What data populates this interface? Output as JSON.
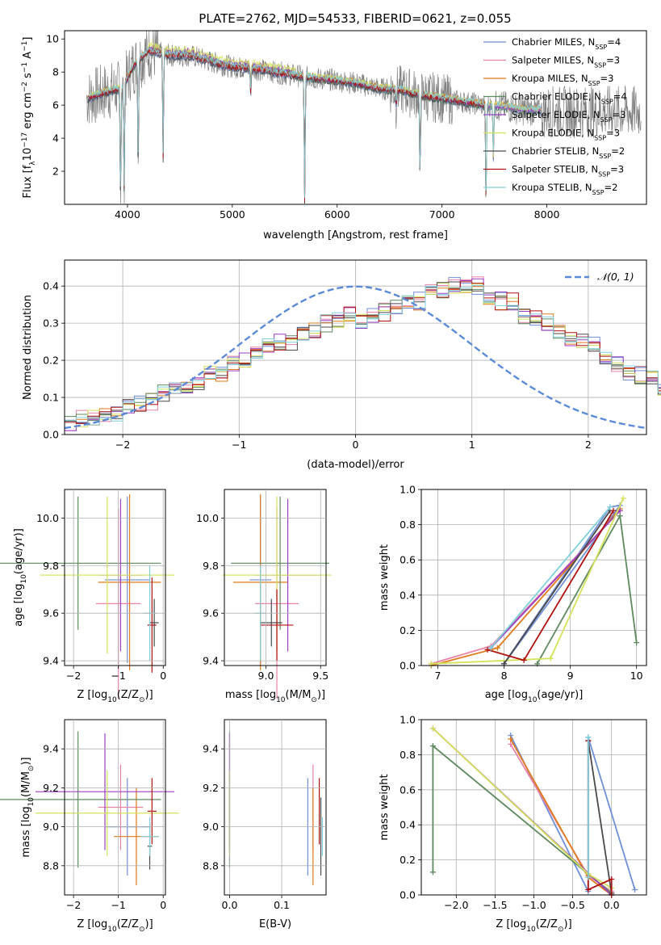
{
  "title": "PLATE=2762, MJD=54533, FIBERID=0621, z=0.055",
  "colors": {
    "Chabrier MILES": "#6f8fd8",
    "Salpeter MILES": "#e783a6",
    "Kroupa MILES": "#e07a1a",
    "Chabrier ELODIE": "#5e8a5e",
    "Salpeter ELODIE": "#9b3fc2",
    "Kroupa ELODIE": "#d4e25a",
    "Chabrier STELIB": "#4a4a4a",
    "Salpeter STELIB": "#b01010",
    "Kroupa STELIB": "#80d0dc",
    "data": "#808080",
    "normal": "#5b8bd8"
  },
  "chart_data": [
    {
      "type": "line",
      "xlabel": "wavelength [Angstrom, rest frame]",
      "ylabel_main": "Flux [f",
      "ylabel_sub": "λ",
      "ylabel_tail": "10",
      "ylabel_exp1": "−17",
      "ylabel_mid": " erg cm",
      "ylabel_exp2": "−2",
      "ylabel_mid2": " s",
      "ylabel_exp3": "−1",
      "ylabel_end": " A",
      "ylabel_exp4": "−1",
      "ylabel_close": "]",
      "xlim": [
        3400,
        8950
      ],
      "ylim": [
        0,
        10.5
      ],
      "xticks": [
        "4000",
        "5000",
        "6000",
        "7000",
        "8000"
      ],
      "yticks": [
        "2",
        "4",
        "6",
        "8",
        "10"
      ],
      "legend_position": "top-right",
      "legend": [
        {
          "name": "Chabrier MILES",
          "nssp": "4"
        },
        {
          "name": "Salpeter MILES",
          "nssp": "3"
        },
        {
          "name": "Kroupa MILES",
          "nssp": "3"
        },
        {
          "name": "Chabrier ELODIE",
          "nssp": "4"
        },
        {
          "name": "Salpeter ELODIE",
          "nssp": "3"
        },
        {
          "name": "Kroupa ELODIE",
          "nssp": "3"
        },
        {
          "name": "Chabrier STELIB",
          "nssp": "2"
        },
        {
          "name": "Salpeter STELIB",
          "nssp": "3"
        },
        {
          "name": "Kroupa STELIB",
          "nssp": "2"
        }
      ],
      "legend_nssp_label": "N",
      "legend_nssp_sub": "SSP",
      "continuum": [
        [
          3620,
          6.4
        ],
        [
          3800,
          6.8
        ],
        [
          3950,
          7.0
        ],
        [
          4050,
          8.3
        ],
        [
          4200,
          9.3
        ],
        [
          4400,
          9.0
        ],
        [
          4600,
          9.0
        ],
        [
          4800,
          8.6
        ],
        [
          5000,
          8.3
        ],
        [
          5200,
          8.2
        ],
        [
          5400,
          8.0
        ],
        [
          5600,
          7.8
        ],
        [
          5800,
          7.6
        ],
        [
          6000,
          7.5
        ],
        [
          6200,
          7.3
        ],
        [
          6400,
          7.0
        ],
        [
          6600,
          6.9
        ],
        [
          6800,
          6.6
        ],
        [
          7000,
          6.4
        ],
        [
          7200,
          6.2
        ],
        [
          7400,
          6.0
        ],
        [
          7600,
          5.9
        ],
        [
          7800,
          5.7
        ],
        [
          7900,
          5.7
        ]
      ],
      "absorption": [
        [
          3934,
          0.3
        ],
        [
          3968,
          1.0
        ],
        [
          4102,
          2.5
        ],
        [
          4340,
          2.8
        ],
        [
          5175,
          6.8
        ],
        [
          5690,
          0.1
        ],
        [
          6563,
          6.0
        ],
        [
          6790,
          1.7
        ],
        [
          7420,
          0.1
        ],
        [
          7490,
          2.8
        ]
      ],
      "data_xrange": [
        3610,
        8900
      ]
    },
    {
      "type": "line",
      "xlabel": "(data-model)/error",
      "ylabel": "Normed distribution",
      "xlim": [
        -2.5,
        2.5
      ],
      "ylim": [
        0,
        0.47
      ],
      "xticks": [
        "−2",
        "−1",
        "0",
        "1",
        "2"
      ],
      "yticks": [
        "0.0",
        "0.1",
        "0.2",
        "0.3",
        "0.4"
      ],
      "legend_position": "top-right",
      "legend_label": "𝒩(0, 1)",
      "bin_width": 0.1,
      "hist_base": [
        0.03,
        0.04,
        0.05,
        0.05,
        0.06,
        0.07,
        0.08,
        0.09,
        0.11,
        0.12,
        0.13,
        0.14,
        0.16,
        0.16,
        0.19,
        0.2,
        0.22,
        0.24,
        0.25,
        0.25,
        0.27,
        0.28,
        0.3,
        0.31,
        0.32,
        0.31,
        0.32,
        0.33,
        0.34,
        0.35,
        0.36,
        0.38,
        0.39,
        0.4,
        0.4,
        0.4,
        0.37,
        0.36,
        0.36,
        0.32,
        0.31,
        0.3,
        0.27,
        0.25,
        0.25,
        0.24,
        0.21,
        0.19,
        0.17,
        0.16,
        0.15,
        0.13,
        0.12,
        0.12,
        0.1,
        0.08,
        0.09,
        0.08,
        0.08,
        0.07,
        0.06,
        0.06,
        0.05,
        0.04,
        0.04,
        0.04,
        0.03,
        0.03,
        0.03,
        0.02
      ]
    },
    {
      "type": "scatter",
      "xlabel": "Z [log",
      "xlabel_sub": "10",
      "xlabel_tail": "(Z/Z",
      "xlabel_sun": "⊙",
      "xlabel_close": ")]",
      "ylabel": "age  [log",
      "ylabel_sub": "10",
      "ylabel_tail": "(age/yr)]",
      "xlim": [
        -2.2,
        0.05
      ],
      "ylim": [
        9.38,
        10.12
      ],
      "xticks": [
        "−2",
        "−1",
        "0"
      ],
      "yticks": [
        "9.4",
        "9.6",
        "9.8",
        "10.0"
      ],
      "points": [
        {
          "series": "Chabrier MILES",
          "x": -0.8,
          "xerr": 0.5,
          "y": 9.74,
          "yerr": 0.35
        },
        {
          "series": "Salpeter MILES",
          "x": -1.0,
          "xerr": 0.5,
          "y": 9.64,
          "yerr": 0.4
        },
        {
          "series": "Kroupa MILES",
          "x": -0.75,
          "xerr": 0.7,
          "y": 9.73,
          "yerr": 0.37
        },
        {
          "series": "Chabrier ELODIE",
          "x": -1.9,
          "xerr": 1.85,
          "y": 9.81,
          "yerr": 0.28
        },
        {
          "series": "Salpeter ELODIE",
          "x": -0.95,
          "xerr": 0.5,
          "y": 9.76,
          "yerr": 0.32
        },
        {
          "series": "Kroupa ELODIE",
          "x": -1.25,
          "xerr": 1.5,
          "y": 9.76,
          "yerr": 0.33
        },
        {
          "series": "Chabrier STELIB",
          "x": -0.2,
          "xerr": 0.1,
          "y": 9.56,
          "yerr": 0.1
        },
        {
          "series": "Salpeter STELIB",
          "x": -0.25,
          "xerr": 0.1,
          "y": 9.55,
          "yerr": 0.2
        },
        {
          "series": "Kroupa STELIB",
          "x": -0.3,
          "xerr": 0.15,
          "y": 9.6,
          "yerr": 0.2
        }
      ]
    },
    {
      "type": "scatter",
      "xlabel": "mass [log",
      "xlabel_sub": "10",
      "xlabel_tail": "(M/M",
      "xlabel_sun": "⊙",
      "xlabel_close": ")]",
      "xlim": [
        8.62,
        9.55
      ],
      "ylim": [
        9.38,
        10.12
      ],
      "xticks": [
        "9.0",
        "9.5"
      ],
      "yticks": [
        "9.4",
        "9.6",
        "9.8",
        "10.0"
      ],
      "points": [
        {
          "series": "Chabrier MILES",
          "x": 8.95,
          "xerr": 0.1,
          "y": 9.74,
          "yerr": 0.35
        },
        {
          "series": "Salpeter MILES",
          "x": 9.1,
          "xerr": 0.2,
          "y": 9.64,
          "yerr": 0.4
        },
        {
          "series": "Kroupa MILES",
          "x": 8.95,
          "xerr": 0.25,
          "y": 9.73,
          "yerr": 0.37
        },
        {
          "series": "Chabrier ELODIE",
          "x": 9.13,
          "xerr": 0.45,
          "y": 9.81,
          "yerr": 0.28
        },
        {
          "series": "Salpeter ELODIE",
          "x": 9.2,
          "xerr": 0.3,
          "y": 9.76,
          "yerr": 0.32
        },
        {
          "series": "Kroupa ELODIE",
          "x": 9.1,
          "xerr": 0.5,
          "y": 9.76,
          "yerr": 0.33
        },
        {
          "series": "Chabrier STELIB",
          "x": 9.05,
          "xerr": 0.1,
          "y": 9.56,
          "yerr": 0.1
        },
        {
          "series": "Salpeter STELIB",
          "x": 9.1,
          "xerr": 0.15,
          "y": 9.55,
          "yerr": 0.15
        },
        {
          "series": "Kroupa STELIB",
          "x": 8.95,
          "xerr": 0.05,
          "y": 9.6,
          "yerr": 0.2
        }
      ]
    },
    {
      "type": "line",
      "xlabel": "age  [log",
      "xlabel_sub": "10",
      "xlabel_tail": "(age/yr)]",
      "ylabel": "mass weight",
      "xlim": [
        6.75,
        10.15
      ],
      "ylim": [
        0,
        1.0
      ],
      "xticks": [
        "7",
        "8",
        "9",
        "10"
      ],
      "yticks": [
        "0.0",
        "0.2",
        "0.4",
        "0.6",
        "0.8",
        "1.0"
      ],
      "series": [
        {
          "name": "Chabrier MILES",
          "x": [
            8.0,
            9.6,
            9.75,
            8.0
          ],
          "y": [
            0.01,
            0.9,
            0.91,
            0.01
          ]
        },
        {
          "name": "Salpeter MILES",
          "x": [
            6.9,
            7.8,
            9.75
          ],
          "y": [
            0.01,
            0.11,
            0.88
          ]
        },
        {
          "name": "Kroupa MILES",
          "x": [
            6.9,
            7.9,
            9.75
          ],
          "y": [
            0.0,
            0.1,
            0.89
          ]
        },
        {
          "name": "Chabrier ELODIE",
          "x": [
            8.5,
            9.75,
            10.0
          ],
          "y": [
            0.01,
            0.85,
            0.13
          ]
        },
        {
          "name": "Salpeter ELODIE",
          "x": [
            7.8,
            9.75
          ],
          "y": [
            0.1,
            0.88
          ]
        },
        {
          "name": "Kroupa ELODIE",
          "x": [
            6.9,
            8.7,
            9.8
          ],
          "y": [
            0.01,
            0.04,
            0.95
          ]
        },
        {
          "name": "Chabrier STELIB",
          "x": [
            8.0,
            9.6
          ],
          "y": [
            0.01,
            0.88
          ]
        },
        {
          "name": "Salpeter STELIB",
          "x": [
            7.75,
            8.3,
            9.65
          ],
          "y": [
            0.09,
            0.03,
            0.88
          ]
        },
        {
          "name": "Kroupa STELIB",
          "x": [
            7.8,
            9.6
          ],
          "y": [
            0.1,
            0.9
          ]
        }
      ]
    },
    {
      "type": "scatter",
      "xlabel": "Z [log",
      "xlabel_sub": "10",
      "xlabel_tail": "(Z/Z",
      "xlabel_sun": "⊙",
      "xlabel_close": ")]",
      "ylabel": "mass [log",
      "ylabel_sub": "10",
      "ylabel_tail": "(M/M",
      "ylabel_sun": "⊙",
      "ylabel_close": ")]",
      "xlim": [
        -2.2,
        0.05
      ],
      "ylim": [
        8.65,
        9.55
      ],
      "xticks": [
        "−2",
        "−1",
        "0"
      ],
      "yticks": [
        "8.8",
        "9.0",
        "9.2",
        "9.4"
      ],
      "points": [
        {
          "series": "Chabrier MILES",
          "x": -0.8,
          "xerr": 0.5,
          "y": 9.0,
          "yerr": 0.25
        },
        {
          "series": "Salpeter MILES",
          "x": -0.95,
          "xerr": 0.5,
          "y": 9.1,
          "yerr": 0.22
        },
        {
          "series": "Kroupa MILES",
          "x": -0.6,
          "xerr": 0.5,
          "y": 8.95,
          "yerr": 0.25
        },
        {
          "series": "Chabrier ELODIE",
          "x": -1.9,
          "xerr": 1.85,
          "y": 9.14,
          "yerr": 0.35
        },
        {
          "series": "Salpeter ELODIE",
          "x": -1.3,
          "xerr": 1.55,
          "y": 9.18,
          "yerr": 0.3
        },
        {
          "series": "Kroupa ELODIE",
          "x": -1.25,
          "xerr": 1.6,
          "y": 9.07,
          "yerr": 0.22
        },
        {
          "series": "Chabrier STELIB",
          "x": -0.3,
          "xerr": 0.05,
          "y": 8.9,
          "yerr": 0.12
        },
        {
          "series": "Salpeter STELIB",
          "x": -0.25,
          "xerr": 0.1,
          "y": 9.08,
          "yerr": 0.17
        },
        {
          "series": "Kroupa STELIB",
          "x": -0.3,
          "xerr": 0.2,
          "y": 8.95,
          "yerr": 0.1
        }
      ]
    },
    {
      "type": "scatter",
      "xlabel": "E(B-V)",
      "xlim": [
        -0.01,
        0.185
      ],
      "ylim": [
        8.65,
        9.55
      ],
      "xticks": [
        "0.0",
        "0.1"
      ],
      "yticks": [
        "8.8",
        "9.0",
        "9.2",
        "9.4"
      ],
      "points": [
        {
          "series": "Chabrier MILES",
          "x": 0.15,
          "y": 9.0,
          "yerr": 0.25
        },
        {
          "series": "Salpeter MILES",
          "x": 0.16,
          "y": 9.1,
          "yerr": 0.22
        },
        {
          "series": "Kroupa MILES",
          "x": 0.16,
          "y": 8.95,
          "yerr": 0.25
        },
        {
          "series": "Chabrier ELODIE",
          "x": 0.0,
          "y": 9.14,
          "yerr": 0.35
        },
        {
          "series": "Salpeter ELODIE",
          "x": 0.0,
          "y": 9.18,
          "yerr": 0.3
        },
        {
          "series": "Kroupa ELODIE",
          "x": 0.0,
          "y": 9.07,
          "yerr": 0.22
        },
        {
          "series": "Chabrier STELIB",
          "x": 0.175,
          "y": 8.95,
          "yerr": 0.2
        },
        {
          "series": "Salpeter STELIB",
          "x": 0.172,
          "y": 9.08,
          "yerr": 0.17
        },
        {
          "series": "Kroupa STELIB",
          "x": 0.178,
          "y": 8.95,
          "yerr": 0.1
        }
      ]
    },
    {
      "type": "line",
      "xlabel": "Z [log",
      "xlabel_sub": "10",
      "xlabel_tail": "(Z/Z",
      "xlabel_sun": "⊙",
      "xlabel_close": ")]",
      "ylabel": "mass weight",
      "xlim": [
        -2.45,
        0.45
      ],
      "ylim": [
        0,
        1.0
      ],
      "xticks": [
        "−2.0",
        "−1.5",
        "−1.0",
        "−0.5",
        "0.0"
      ],
      "yticks": [
        "0.0",
        "0.2",
        "0.4",
        "0.6",
        "0.8",
        "1.0"
      ],
      "series": [
        {
          "name": "Chabrier MILES",
          "x": [
            -1.3,
            -0.3,
            -0.3,
            0.3
          ],
          "y": [
            0.91,
            0.02,
            0.9,
            0.03
          ]
        },
        {
          "name": "Salpeter MILES",
          "x": [
            -1.3,
            -0.3,
            0.0
          ],
          "y": [
            0.86,
            0.11,
            0.02
          ]
        },
        {
          "name": "Kroupa MILES",
          "x": [
            -1.3,
            -0.3,
            0.0
          ],
          "y": [
            0.89,
            0.1,
            0.0
          ]
        },
        {
          "name": "Chabrier ELODIE",
          "x": [
            -2.3,
            -2.3,
            0.0
          ],
          "y": [
            0.13,
            0.85,
            0.01
          ]
        },
        {
          "name": "Salpeter ELODIE",
          "x": [
            -2.3,
            0.0
          ],
          "y": [
            0.95,
            0.0
          ]
        },
        {
          "name": "Kroupa ELODIE",
          "x": [
            -2.3,
            -0.3,
            0.0
          ],
          "y": [
            0.95,
            0.12,
            0.04
          ]
        },
        {
          "name": "Chabrier STELIB",
          "x": [
            -0.3,
            0.0
          ],
          "y": [
            0.88,
            0.01
          ]
        },
        {
          "name": "Salpeter STELIB",
          "x": [
            -0.3,
            -0.3,
            0.0,
            0.0
          ],
          "y": [
            0.88,
            0.03,
            0.09,
            0.0
          ]
        },
        {
          "name": "Kroupa STELIB",
          "x": [
            -0.3,
            -0.3
          ],
          "y": [
            0.9,
            0.1
          ]
        }
      ]
    }
  ]
}
